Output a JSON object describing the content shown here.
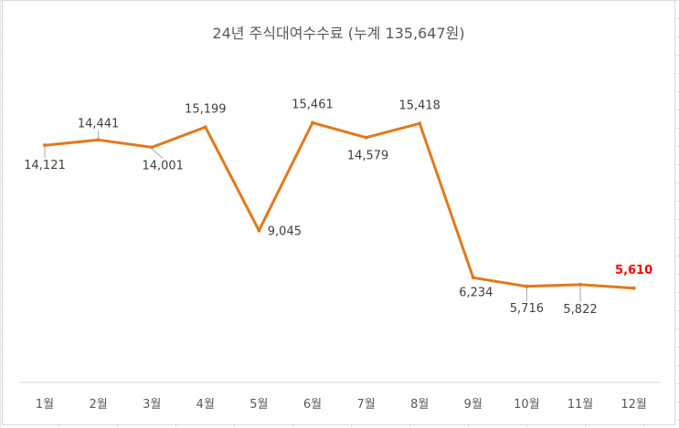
{
  "chart_data": {
    "type": "line",
    "title": "24년 주식대여수수료 (누계 135,647원)",
    "categories": [
      "1월",
      "2월",
      "3월",
      "4월",
      "5월",
      "6월",
      "7월",
      "8월",
      "9월",
      "10월",
      "11월",
      "12월"
    ],
    "values": [
      14121,
      14441,
      14001,
      15199,
      9045,
      15461,
      14579,
      15418,
      6234,
      5716,
      5822,
      5610
    ],
    "value_labels": [
      "14,121",
      "14,441",
      "14,001",
      "15,199",
      "9,045",
      "15,461",
      "14,579",
      "15,418",
      "6,234",
      "5,716",
      "5,822",
      "5,610"
    ],
    "highlight_index": 11,
    "ylim": [
      0,
      20000
    ],
    "grid": false,
    "legend": "none",
    "colors": {
      "line": "#e2791b",
      "highlight_label": "#ff0000",
      "axis": "#d9d9d9",
      "text": "#595959"
    }
  }
}
